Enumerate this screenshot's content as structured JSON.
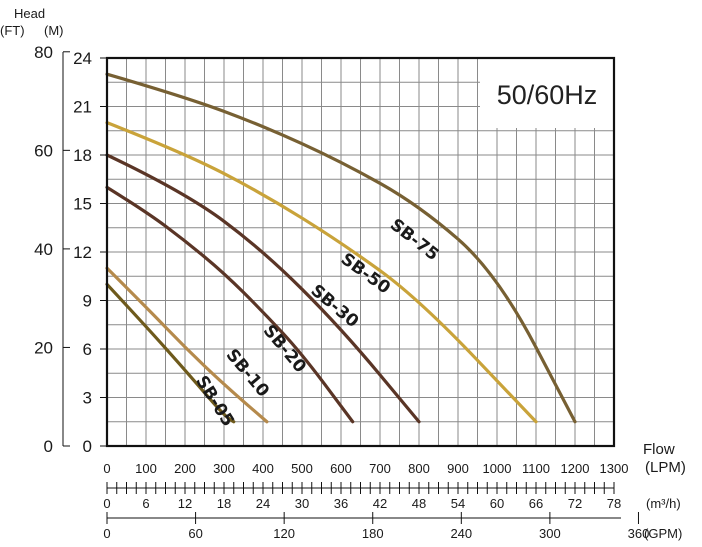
{
  "chart_data": {
    "type": "line",
    "annotation": "50/60Hz",
    "y_axis_left": {
      "title": "Head",
      "ft_label": "(FT)",
      "m_label": "(M)",
      "ft_ticks": [
        "80",
        "60",
        "40",
        "20",
        "0"
      ],
      "m_ticks": [
        "24",
        "21",
        "18",
        "15",
        "12",
        "9",
        "6",
        "3",
        "0"
      ],
      "m_range": [
        0,
        24
      ]
    },
    "x_axis": {
      "title": "Flow",
      "lpm_label": "(LPM)",
      "lpm_ticks": [
        "0",
        "100",
        "200",
        "300",
        "400",
        "500",
        "600",
        "700",
        "800",
        "900",
        "1000",
        "1100",
        "1200",
        "1300"
      ],
      "lpm_range": [
        0,
        1300
      ],
      "m3h_label": "(m³/h)",
      "m3h_ticks": [
        "0",
        "6",
        "12",
        "18",
        "24",
        "30",
        "36",
        "42",
        "48",
        "54",
        "60",
        "66",
        "72",
        "78"
      ],
      "gpm_label": "(GPM)",
      "gpm_ticks": [
        "0",
        "60",
        "120",
        "180",
        "240",
        "300",
        "360"
      ]
    },
    "grid": true,
    "series": [
      {
        "name": "SB-05",
        "color": "#6e5a1c",
        "x": [
          0,
          100,
          200,
          300,
          325
        ],
        "y": [
          10,
          7.4,
          4.7,
          1.9,
          1.5
        ]
      },
      {
        "name": "SB-10",
        "color": "#b58a4c",
        "x": [
          0,
          100,
          200,
          300,
          410
        ],
        "y": [
          11,
          8.6,
          6.1,
          3.8,
          1.5
        ]
      },
      {
        "name": "SB-20",
        "color": "#5a3526",
        "x": [
          0,
          100,
          200,
          300,
          400,
          500,
          630
        ],
        "y": [
          16,
          14.5,
          12.7,
          10.7,
          8.3,
          5.7,
          1.5
        ]
      },
      {
        "name": "SB-30",
        "color": "#5a3526",
        "x": [
          0,
          200,
          400,
          600,
          800
        ],
        "y": [
          18,
          15.7,
          12.1,
          7.3,
          1.5
        ]
      },
      {
        "name": "SB-50",
        "color": "#c9a33a",
        "x": [
          0,
          200,
          400,
          600,
          800,
          1100
        ],
        "y": [
          20,
          18.1,
          15.6,
          12.6,
          9.1,
          1.5
        ]
      },
      {
        "name": "SB-75",
        "color": "#776033",
        "x": [
          0,
          200,
          400,
          600,
          800,
          1000,
          1200
        ],
        "y": [
          23,
          21.6,
          19.8,
          17.6,
          14.9,
          10.7,
          1.5
        ]
      }
    ],
    "curve_labels": [
      {
        "text": "SB-05",
        "x": 265,
        "y": 2.6,
        "angle": 58
      },
      {
        "text": "SB-10",
        "x": 350,
        "y": 4.3,
        "angle": 50
      },
      {
        "text": "SB-20",
        "x": 445,
        "y": 5.8,
        "angle": 50
      },
      {
        "text": "SB-30",
        "x": 575,
        "y": 8.4,
        "angle": 40
      },
      {
        "text": "SB-50",
        "x": 655,
        "y": 10.4,
        "angle": 36
      },
      {
        "text": "SB-75",
        "x": 780,
        "y": 12.5,
        "angle": 38
      }
    ]
  }
}
